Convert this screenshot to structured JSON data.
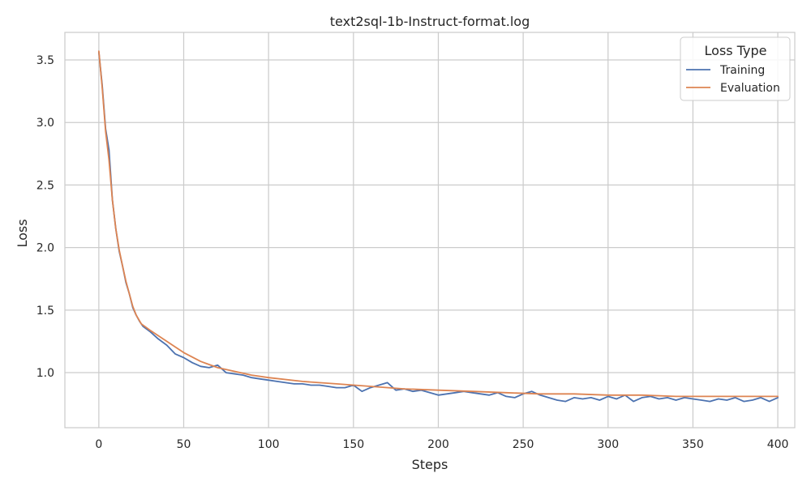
{
  "chart_data": {
    "type": "line",
    "title": "text2sql-1b-Instruct-format.log",
    "xlabel": "Steps",
    "ylabel": "Loss",
    "xlim": [
      -20,
      410
    ],
    "ylim": [
      0.56,
      3.72
    ],
    "xticks": [
      0,
      50,
      100,
      150,
      200,
      250,
      300,
      350,
      400
    ],
    "yticks": [
      1.0,
      1.5,
      2.0,
      2.5,
      3.0,
      3.5
    ],
    "grid": true,
    "legend": {
      "title": "Loss Type",
      "placement": "top-right"
    },
    "series": [
      {
        "name": "Training",
        "color": "#4c72b0",
        "x": [
          0,
          2,
          4,
          6,
          8,
          10,
          12,
          14,
          16,
          18,
          20,
          22,
          24,
          26,
          28,
          30,
          35,
          40,
          45,
          50,
          55,
          60,
          65,
          70,
          75,
          80,
          85,
          90,
          95,
          100,
          105,
          110,
          115,
          120,
          125,
          130,
          135,
          140,
          145,
          150,
          155,
          160,
          165,
          170,
          175,
          180,
          185,
          190,
          195,
          200,
          205,
          210,
          215,
          220,
          225,
          230,
          235,
          240,
          245,
          250,
          255,
          260,
          265,
          270,
          275,
          280,
          285,
          290,
          295,
          300,
          305,
          310,
          315,
          320,
          325,
          330,
          335,
          340,
          345,
          350,
          355,
          360,
          365,
          370,
          375,
          380,
          385,
          390,
          395,
          400
        ],
        "y": [
          3.56,
          3.3,
          2.95,
          2.78,
          2.38,
          2.15,
          1.97,
          1.85,
          1.72,
          1.63,
          1.52,
          1.46,
          1.41,
          1.37,
          1.35,
          1.33,
          1.27,
          1.22,
          1.15,
          1.12,
          1.08,
          1.05,
          1.04,
          1.06,
          1.0,
          0.99,
          0.98,
          0.96,
          0.95,
          0.94,
          0.93,
          0.92,
          0.91,
          0.91,
          0.9,
          0.9,
          0.89,
          0.88,
          0.88,
          0.9,
          0.85,
          0.88,
          0.9,
          0.92,
          0.86,
          0.87,
          0.85,
          0.86,
          0.84,
          0.82,
          0.83,
          0.84,
          0.85,
          0.84,
          0.83,
          0.82,
          0.84,
          0.81,
          0.8,
          0.83,
          0.85,
          0.82,
          0.8,
          0.78,
          0.77,
          0.8,
          0.79,
          0.8,
          0.78,
          0.81,
          0.79,
          0.82,
          0.77,
          0.8,
          0.81,
          0.79,
          0.8,
          0.78,
          0.8,
          0.79,
          0.78,
          0.77,
          0.79,
          0.78,
          0.8,
          0.77,
          0.78,
          0.8,
          0.77,
          0.8
        ]
      },
      {
        "name": "Evaluation",
        "color": "#dd8452",
        "x": [
          0,
          2,
          4,
          6,
          8,
          10,
          12,
          14,
          16,
          18,
          20,
          22,
          25,
          30,
          40,
          50,
          60,
          70,
          80,
          90,
          100,
          120,
          140,
          160,
          180,
          200,
          220,
          240,
          260,
          280,
          300,
          320,
          340,
          360,
          380,
          400
        ],
        "y": [
          3.57,
          3.28,
          2.93,
          2.7,
          2.38,
          2.15,
          1.98,
          1.85,
          1.73,
          1.63,
          1.53,
          1.46,
          1.39,
          1.34,
          1.25,
          1.16,
          1.09,
          1.04,
          1.01,
          0.98,
          0.96,
          0.93,
          0.91,
          0.89,
          0.87,
          0.86,
          0.85,
          0.84,
          0.83,
          0.83,
          0.82,
          0.82,
          0.81,
          0.81,
          0.81,
          0.81
        ]
      }
    ]
  }
}
